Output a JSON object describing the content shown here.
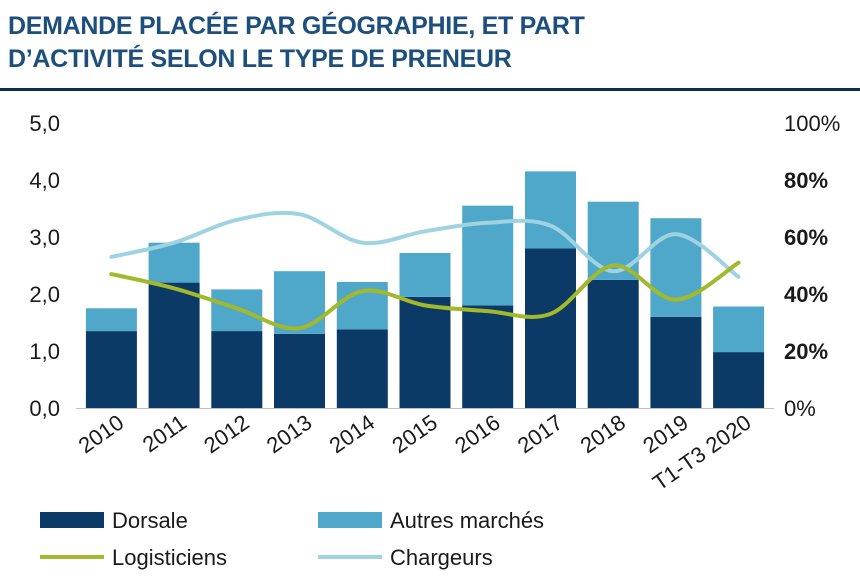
{
  "title": {
    "line1": "DEMANDE PLACÉE PAR GÉOGRAPHIE, ET PART",
    "line2": "D’ACTIVITÉ SELON LE TYPE DE PRENEUR"
  },
  "colors": {
    "title": "#1d4f7c",
    "rule": "#0b2e57",
    "dorsale": "#0b3a66",
    "autres": "#4fa8c9",
    "logisticiens": "#a3b92a",
    "chargeurs": "#9fd3e2"
  },
  "chart_data": {
    "type": "bar",
    "stacked": true,
    "categories": [
      "2010",
      "2011",
      "2012",
      "2013",
      "2014",
      "2015",
      "2016",
      "2017",
      "2018",
      "2019",
      "T1-T3 2020"
    ],
    "series": [
      {
        "name": "Dorsale",
        "type": "bar",
        "axis": "left",
        "color": "#0b3a66",
        "values": [
          1.35,
          2.2,
          1.35,
          1.3,
          1.38,
          1.95,
          1.8,
          2.8,
          2.25,
          1.6,
          0.98
        ]
      },
      {
        "name": "Autres marchés",
        "type": "bar",
        "axis": "left",
        "color": "#4fa8c9",
        "values": [
          0.4,
          0.7,
          0.73,
          1.1,
          0.83,
          0.77,
          1.75,
          1.35,
          1.37,
          1.73,
          0.8
        ]
      },
      {
        "name": "Logisticiens",
        "type": "line",
        "axis": "right",
        "color": "#a3b92a",
        "values": [
          47,
          42,
          35,
          28,
          41,
          36,
          34,
          33,
          50,
          38,
          51
        ]
      },
      {
        "name": "Chargeurs",
        "type": "line",
        "axis": "right",
        "color": "#9fd3e2",
        "values": [
          53,
          58,
          66,
          68,
          58,
          62,
          65,
          64,
          48,
          61,
          46
        ]
      }
    ],
    "y_left": {
      "ticks": [
        "0,0",
        "1,0",
        "2,0",
        "3,0",
        "4,0",
        "5,0"
      ],
      "ylim": [
        0,
        5
      ]
    },
    "y_right": {
      "ticks": [
        "0%",
        "20%",
        "40%",
        "60%",
        "80%",
        "100%"
      ],
      "ylim": [
        0,
        100
      ]
    },
    "legend": {
      "position": "bottom",
      "items": [
        {
          "label": "Dorsale",
          "kind": "bar",
          "color": "#0b3a66"
        },
        {
          "label": "Autres marchés",
          "kind": "bar",
          "color": "#4fa8c9"
        },
        {
          "label": "Logisticiens",
          "kind": "line",
          "color": "#a3b92a"
        },
        {
          "label": "Chargeurs",
          "kind": "line",
          "color": "#9fd3e2"
        }
      ]
    },
    "grid": false
  }
}
